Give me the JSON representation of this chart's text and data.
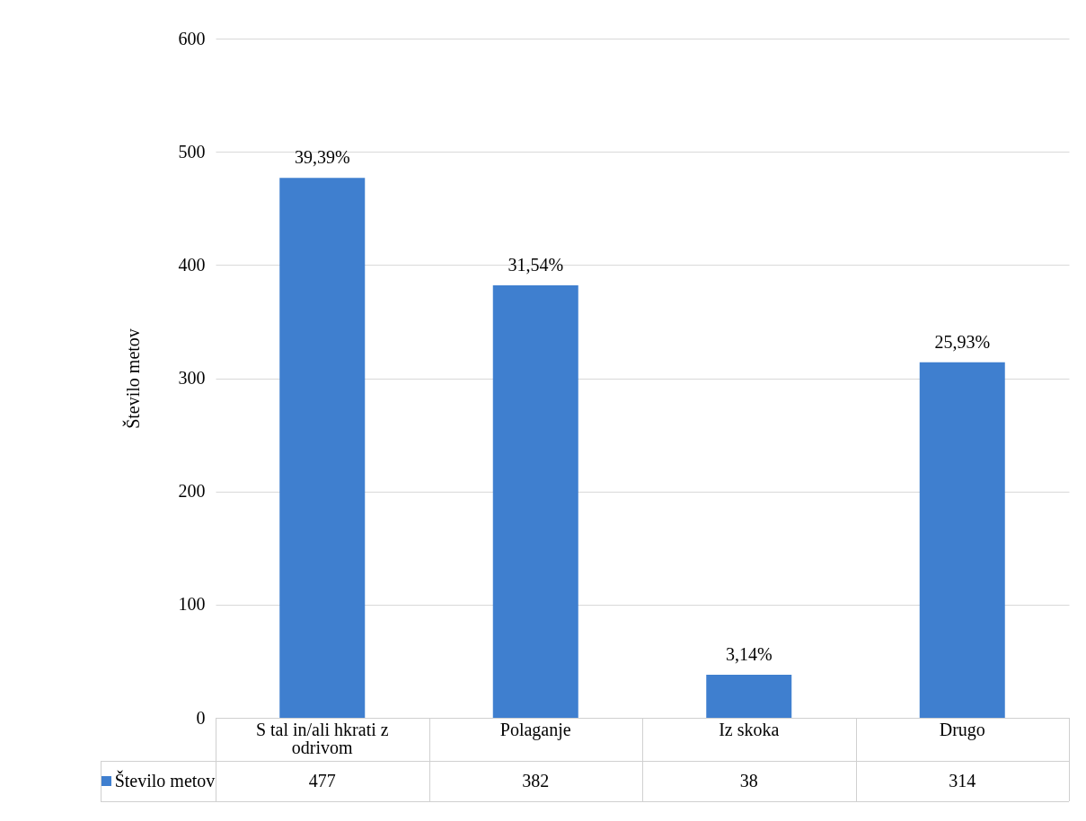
{
  "chart_data": {
    "type": "bar",
    "ylabel": "Število metov",
    "categories": [
      "S tal in/ali hkrati z odrivom",
      "Polaganje",
      "Iz skoka",
      "Drugo"
    ],
    "series": [
      {
        "name": "Število metov",
        "color": "#3f7fcf",
        "values": [
          477,
          382,
          38,
          314
        ]
      }
    ],
    "annotations": [
      {
        "text": "39,39%",
        "x": "S tal in/ali hkrati z odrivom",
        "y": 477
      },
      {
        "text": "31,54%",
        "x": "Polaganje",
        "y": 382
      },
      {
        "text": "3,14%",
        "x": "Iz skoka",
        "y": 38
      },
      {
        "text": "25,93%",
        "x": "Drugo",
        "y": 314
      }
    ],
    "ylim": [
      0,
      600
    ],
    "yticks": [
      0,
      100,
      200,
      300,
      400,
      500,
      600
    ],
    "grid": "y",
    "data_labels": true,
    "legend": "bottom"
  }
}
